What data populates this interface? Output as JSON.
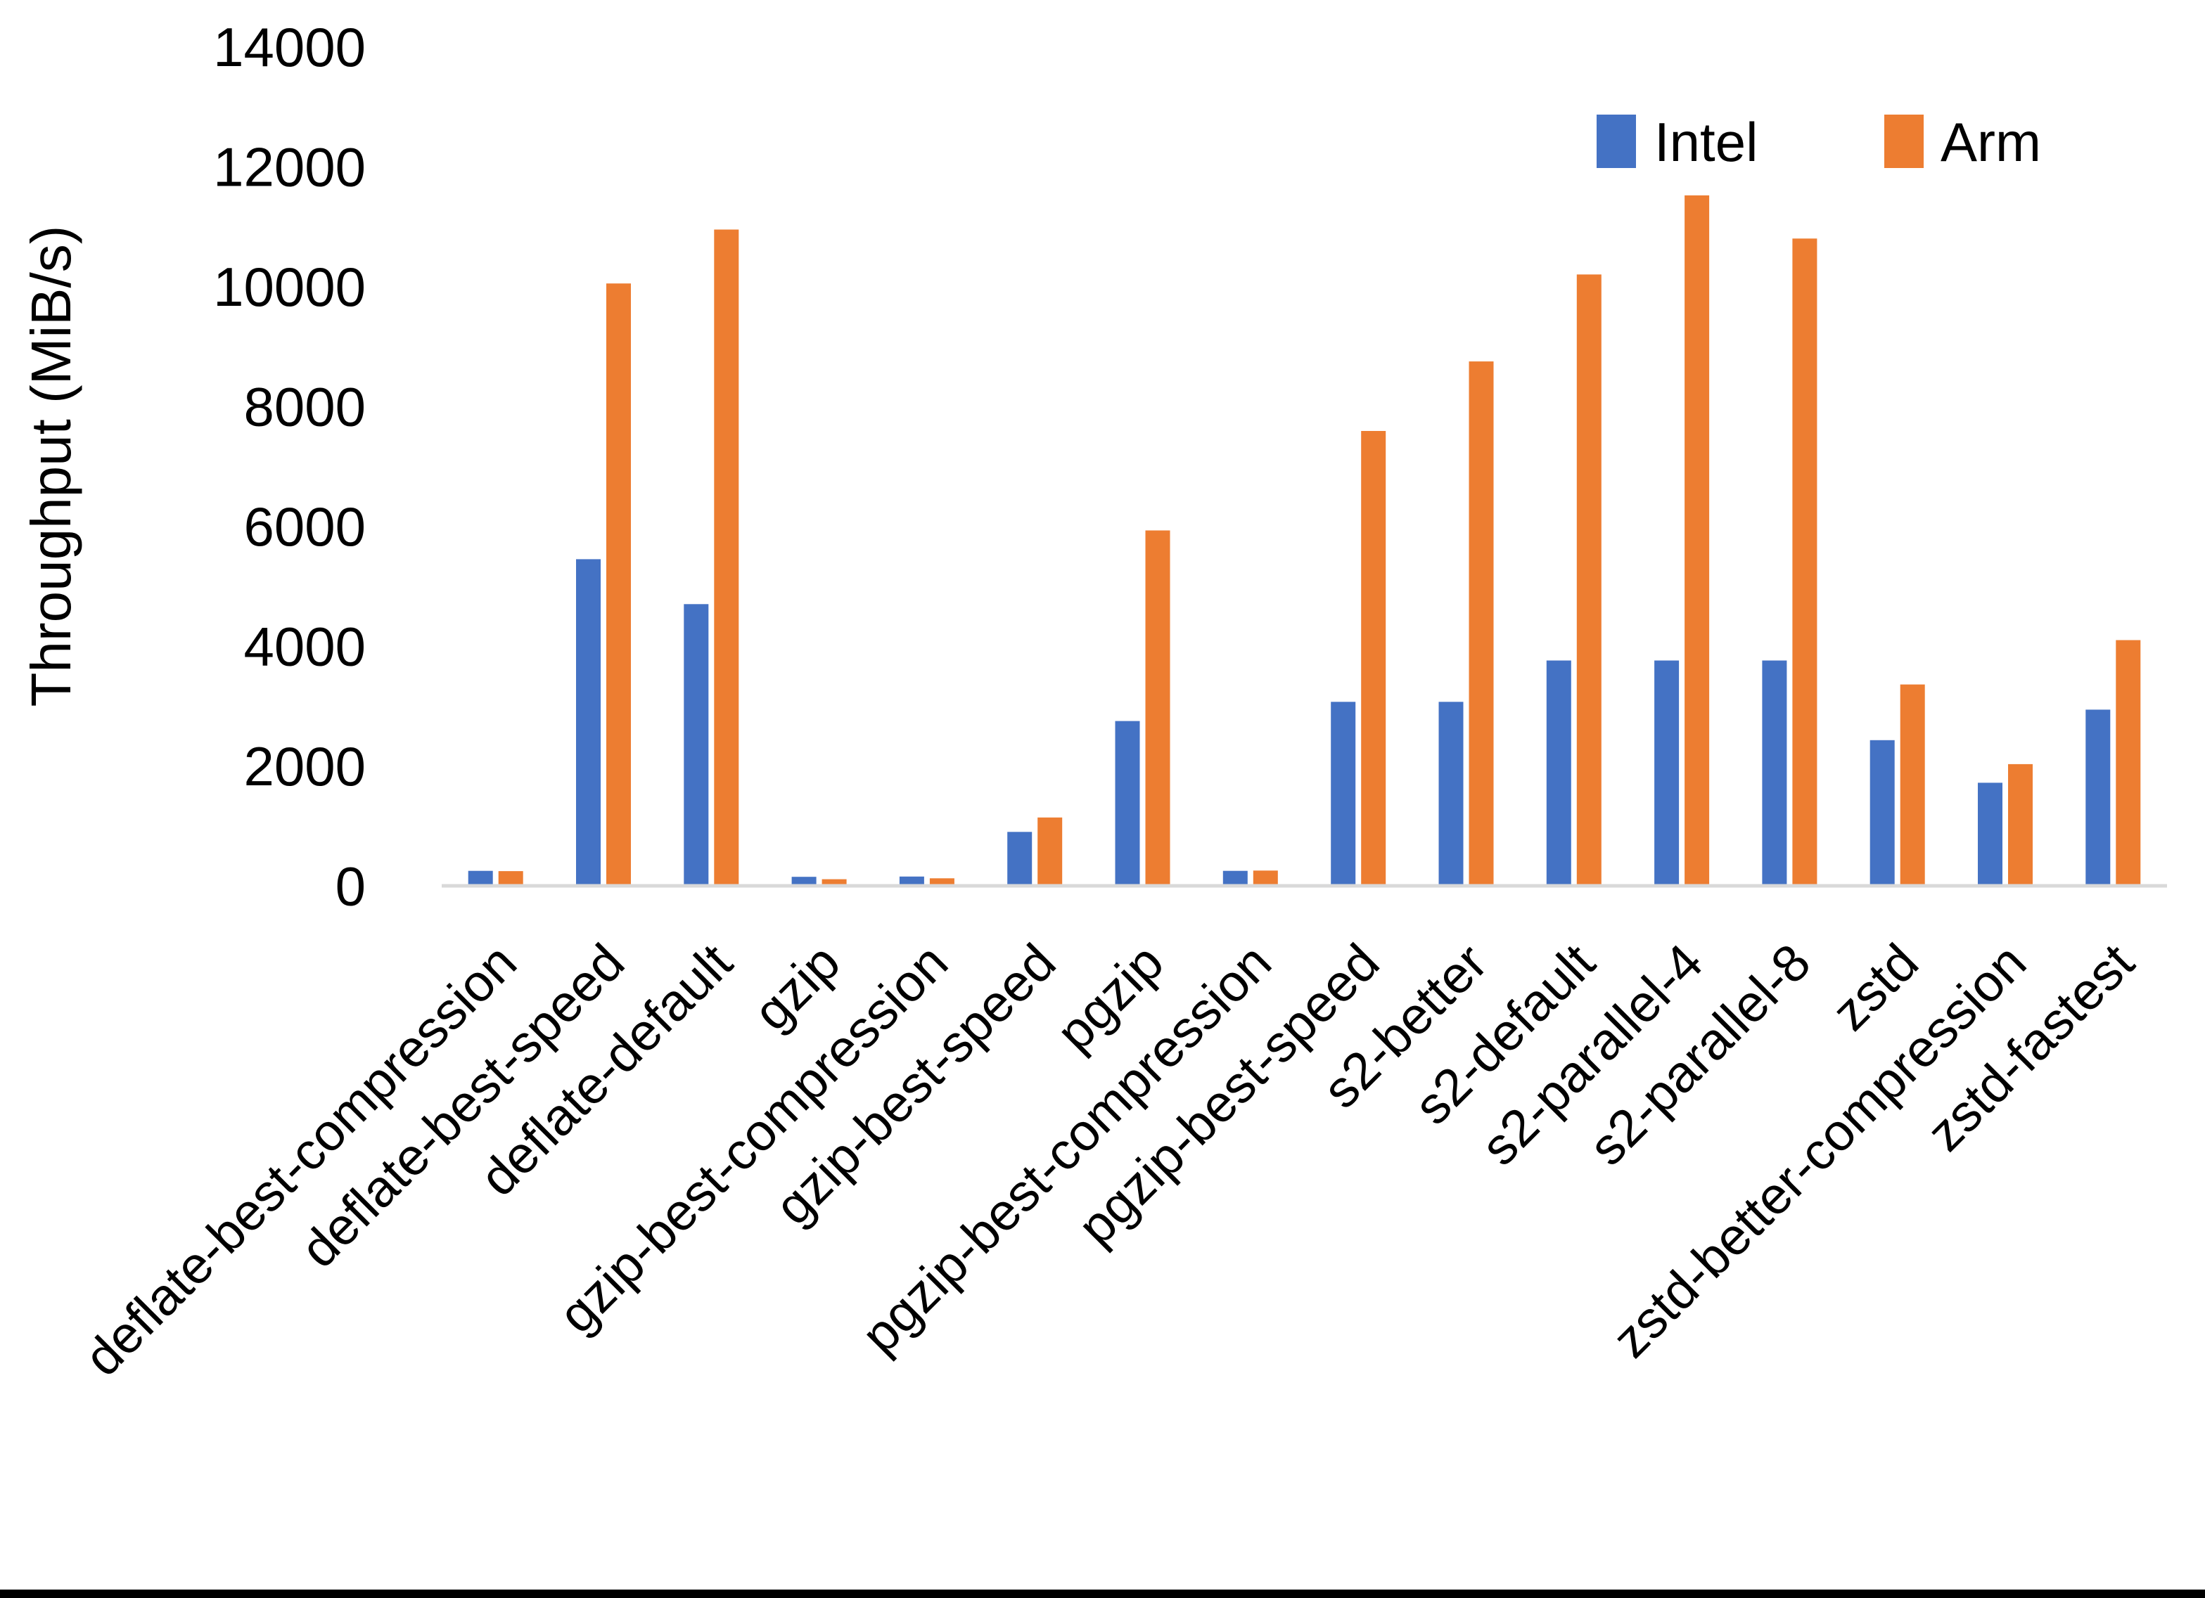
{
  "figure": {
    "background": "#ffffff",
    "bottom_strip_color": "#000000",
    "axis_line_color": "#d9d9d9",
    "text_color": "#000000"
  },
  "chart_data": {
    "type": "bar",
    "title": "",
    "xlabel": "",
    "ylabel": "Throughput (MiB/s)",
    "ylim": [
      0,
      14000
    ],
    "ytick_step": 2000,
    "yticks": [
      0,
      2000,
      4000,
      6000,
      8000,
      10000,
      12000,
      14000
    ],
    "grid": false,
    "legend_position": "top-right",
    "categories": [
      "deflate-best-compression",
      "deflate-best-speed",
      "deflate-default",
      "gzip",
      "gzip-best-compression",
      "gzip-best-speed",
      "pgzip",
      "pgzip-best-compression",
      "pgzip-best-speed",
      "s2-better",
      "s2-default",
      "s2-parallel-4",
      "s2-parallel-8",
      "zstd",
      "zstd-better-compression",
      "zstd-fastest"
    ],
    "series": [
      {
        "name": "Intel",
        "color": "#4472C4",
        "values": [
          250,
          5450,
          4700,
          150,
          155,
          900,
          2750,
          250,
          3070,
          3070,
          3760,
          3760,
          3760,
          2430,
          1720,
          2940
        ]
      },
      {
        "name": "Arm",
        "color": "#ED7D31",
        "values": [
          245,
          10050,
          10950,
          110,
          125,
          1140,
          5930,
          255,
          7590,
          8750,
          10200,
          11520,
          10800,
          3360,
          2030,
          4100
        ]
      }
    ]
  }
}
